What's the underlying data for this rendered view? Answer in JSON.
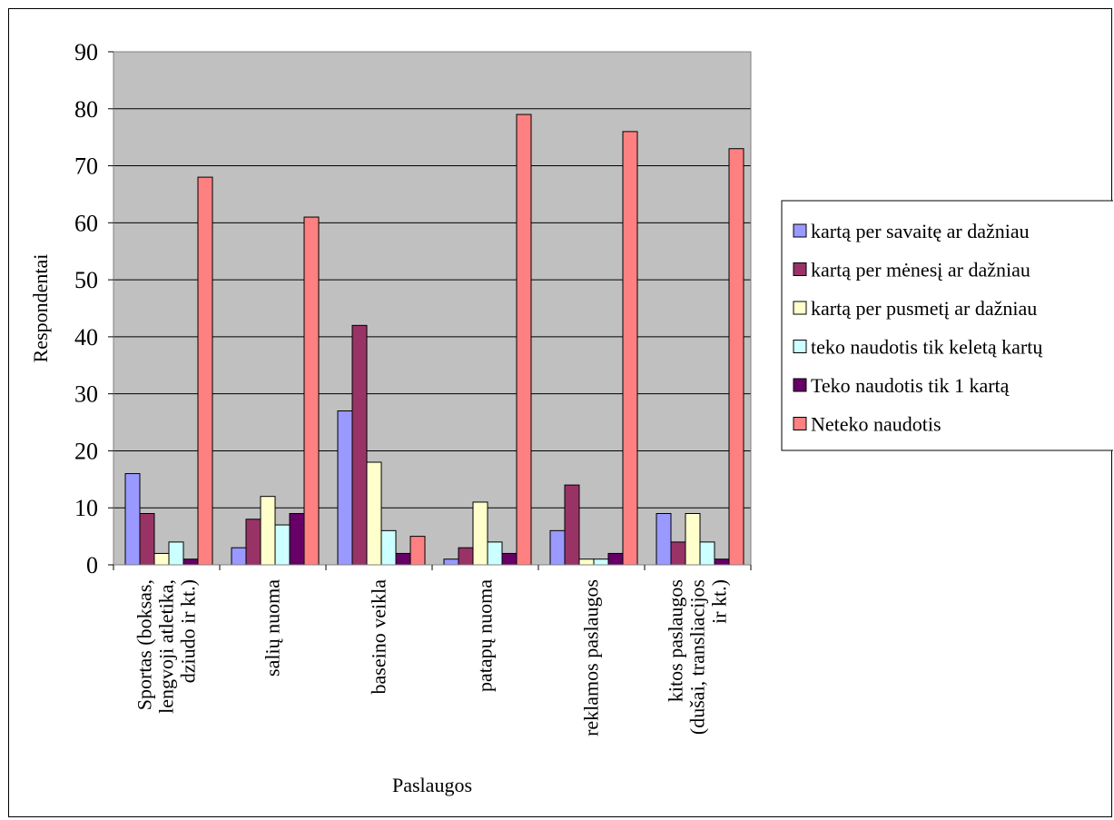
{
  "chart_data": {
    "type": "bar",
    "title": "",
    "xlabel": "Paslaugos",
    "ylabel": "Respondentai",
    "ylim": [
      0,
      90
    ],
    "yticks": [
      0,
      10,
      20,
      30,
      40,
      50,
      60,
      70,
      80,
      90
    ],
    "grid": true,
    "legend_position": "right",
    "categories": [
      [
        "Sportas (boksas,",
        "lengvoji atletika,",
        "dziudo ir kt.)"
      ],
      [
        "salių nuoma"
      ],
      [
        "baseino veikla"
      ],
      [
        "patapų nuoma"
      ],
      [
        "reklamos paslaugos"
      ],
      [
        "kitos paslaugos",
        "(dušai, transliacijos",
        "ir kt.)"
      ]
    ],
    "series": [
      {
        "name": "kartą per savaitę ar dažniau",
        "color": "#9999ff",
        "values": [
          16,
          3,
          27,
          1,
          6,
          9
        ]
      },
      {
        "name": "kartą per mėnesį ar dažniau",
        "color": "#993366",
        "values": [
          9,
          8,
          42,
          3,
          14,
          4
        ]
      },
      {
        "name": "kartą per pusmetį ar dažniau",
        "color": "#ffffcc",
        "values": [
          2,
          12,
          18,
          11,
          1,
          9
        ]
      },
      {
        "name": "teko naudotis tik keletą kartų",
        "color": "#ccffff",
        "values": [
          4,
          7,
          6,
          4,
          1,
          4
        ]
      },
      {
        "name": "Teko naudotis tik 1 kartą",
        "color": "#660066",
        "values": [
          1,
          9,
          2,
          2,
          2,
          1
        ]
      },
      {
        "name": "Neteko naudotis",
        "color": "#ff8080",
        "values": [
          68,
          61,
          5,
          79,
          76,
          73
        ]
      }
    ],
    "plot_background": "#c0c0c0"
  }
}
